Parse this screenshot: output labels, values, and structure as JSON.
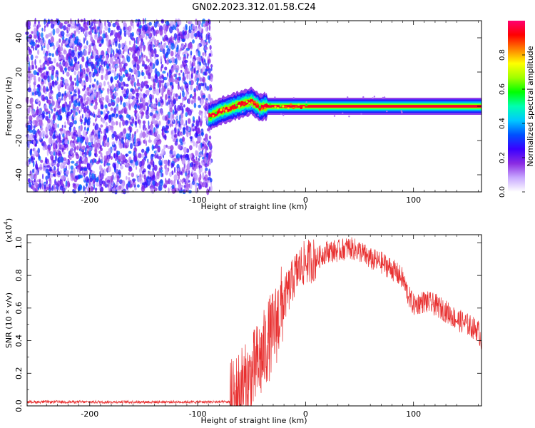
{
  "figure_title": "GN02.2023.312.01.58.C24",
  "chart_data": [
    {
      "type": "heatmap",
      "title": "",
      "xlabel": "Height of straight line (km)",
      "ylabel": "Frequency (Hz)",
      "xlim": [
        -258,
        163
      ],
      "ylim": [
        -50,
        50
      ],
      "x_ticks": [
        -200,
        -100,
        0,
        100
      ],
      "y_ticks": [
        -40,
        -20,
        0,
        20,
        40
      ],
      "noise_region": {
        "x_range": [
          -258,
          -87
        ],
        "y_range": [
          -50,
          50
        ],
        "amplitude": "0.1-0.3"
      },
      "signal_trace": {
        "points": [
          {
            "x": -90,
            "y": -6
          },
          {
            "x": -85,
            "y": -5
          },
          {
            "x": -80,
            "y": -3
          },
          {
            "x": -75,
            "y": -2
          },
          {
            "x": -70,
            "y": -1
          },
          {
            "x": -65,
            "y": 0
          },
          {
            "x": -60,
            "y": 1
          },
          {
            "x": -55,
            "y": 2
          },
          {
            "x": -50,
            "y": 3
          },
          {
            "x": -46,
            "y": 1
          },
          {
            "x": -42,
            "y": -1
          },
          {
            "x": -38,
            "y": 0
          },
          {
            "x": -30,
            "y": 0
          },
          {
            "x": -20,
            "y": 0
          },
          {
            "x": -10,
            "y": 0
          },
          {
            "x": 0,
            "y": 0
          },
          {
            "x": 163,
            "y": 0
          }
        ],
        "core_amplitude": 0.95
      },
      "colorbar": {
        "label": "Normalized spectral amplitude",
        "range": [
          0.0,
          1.0
        ],
        "ticks": [
          "0.0",
          "0.2",
          "0.4",
          "0.6",
          "0.8"
        ],
        "palette": [
          "#ffffff",
          "#c8a8ff",
          "#8a2be2",
          "#3a00ff",
          "#0050ff",
          "#00c8ff",
          "#00ffb0",
          "#00ff00",
          "#a0ff00",
          "#ffff00",
          "#ff8000",
          "#ff0000",
          "#ff0070"
        ]
      },
      "grid": false
    },
    {
      "type": "line",
      "title": "",
      "xlabel": "Height of straight line (km)",
      "ylabel": "SNR (10 * v/v)",
      "y_multiplier": "(x10",
      "y_multiplier_exp": "4",
      "y_multiplier_close": ")",
      "xlim": [
        -258,
        163
      ],
      "ylim": [
        0,
        1.05
      ],
      "x_ticks": [
        -200,
        -100,
        0,
        100
      ],
      "y_ticks": [
        "0.0",
        "0.2",
        "0.4",
        "0.6",
        "0.8",
        "1.0"
      ],
      "color": "#e83030",
      "envelope": [
        {
          "x": -258,
          "y": 0.02
        },
        {
          "x": -150,
          "y": 0.02
        },
        {
          "x": -70,
          "y": 0.02
        },
        {
          "x": -65,
          "y": 0.05
        },
        {
          "x": -60,
          "y": 0.12
        },
        {
          "x": -55,
          "y": 0.12
        },
        {
          "x": -50,
          "y": 0.18
        },
        {
          "x": -45,
          "y": 0.25
        },
        {
          "x": -40,
          "y": 0.3
        },
        {
          "x": -35,
          "y": 0.4
        },
        {
          "x": -30,
          "y": 0.45
        },
        {
          "x": -25,
          "y": 0.55
        },
        {
          "x": -20,
          "y": 0.65
        },
        {
          "x": -15,
          "y": 0.72
        },
        {
          "x": -10,
          "y": 0.8
        },
        {
          "x": -5,
          "y": 0.85
        },
        {
          "x": 0,
          "y": 0.88
        },
        {
          "x": 10,
          "y": 0.9
        },
        {
          "x": 20,
          "y": 0.95
        },
        {
          "x": 30,
          "y": 0.95
        },
        {
          "x": 40,
          "y": 0.97
        },
        {
          "x": 50,
          "y": 0.95
        },
        {
          "x": 60,
          "y": 0.9
        },
        {
          "x": 70,
          "y": 0.88
        },
        {
          "x": 80,
          "y": 0.84
        },
        {
          "x": 90,
          "y": 0.78
        },
        {
          "x": 95,
          "y": 0.68
        },
        {
          "x": 100,
          "y": 0.62
        },
        {
          "x": 110,
          "y": 0.64
        },
        {
          "x": 120,
          "y": 0.62
        },
        {
          "x": 130,
          "y": 0.58
        },
        {
          "x": 140,
          "y": 0.53
        },
        {
          "x": 150,
          "y": 0.5
        },
        {
          "x": 160,
          "y": 0.46
        },
        {
          "x": 163,
          "y": 0.4
        }
      ]
    }
  ]
}
